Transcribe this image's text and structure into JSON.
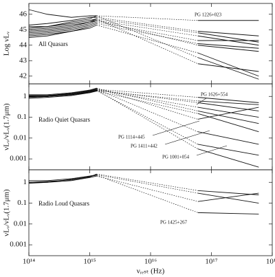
{
  "chart_data": [
    {
      "type": "line",
      "xscale": "log",
      "ylabel": "Log νLᵥ",
      "label": "All Quasars",
      "color": "#111",
      "annotations": [
        "PG 1226+023"
      ],
      "xlim": [
        100000000000000.0,
        1e+18
      ],
      "ylim": [
        41.5,
        46.7
      ],
      "yticks": [
        42,
        43,
        44,
        45,
        46
      ],
      "series": [
        {
          "x": [
            100000000000000.0,
            200000000000000.0,
            500000000000000.0,
            1000000000000000.0,
            1300000000000000.0,
            6e+16,
            6e+17
          ],
          "values": [
            46.3,
            46.0,
            45.8,
            45.9,
            45.9,
            45.6,
            45.6
          ]
        },
        {
          "x": [
            100000000000000.0,
            200000000000000.0,
            500000000000000.0,
            1000000000000000.0,
            1300000000000000.0,
            6e+16,
            6e+17
          ],
          "values": [
            45.3,
            45.4,
            45.6,
            45.8,
            45.8,
            44.9,
            44.6
          ]
        },
        {
          "x": [
            100000000000000.0,
            200000000000000.0,
            500000000000000.0,
            1000000000000000.0,
            1300000000000000.0,
            6e+16,
            6e+17
          ],
          "values": [
            45.1,
            45.2,
            45.4,
            45.6,
            45.7,
            44.8,
            44.2
          ]
        },
        {
          "x": [
            100000000000000.0,
            200000000000000.0,
            500000000000000.0,
            1000000000000000.0,
            1300000000000000.0,
            6e+16,
            6e+17
          ],
          "values": [
            44.9,
            45.0,
            45.2,
            45.5,
            45.6,
            44.6,
            44.0
          ]
        },
        {
          "x": [
            100000000000000.0,
            200000000000000.0,
            500000000000000.0,
            1000000000000000.0,
            1300000000000000.0,
            6e+16,
            6e+17
          ],
          "values": [
            44.7,
            44.8,
            45.0,
            45.3,
            45.5,
            44.3,
            44.3
          ]
        },
        {
          "x": [
            100000000000000.0,
            200000000000000.0,
            500000000000000.0,
            1000000000000000.0,
            1300000000000000.0,
            6e+16,
            6e+17
          ],
          "values": [
            44.6,
            44.7,
            44.9,
            45.2,
            45.4,
            44.1,
            43.8
          ]
        },
        {
          "x": [
            100000000000000.0,
            200000000000000.0,
            500000000000000.0,
            1000000000000000.0,
            1300000000000000.0,
            6e+16,
            6e+17
          ],
          "values": [
            44.5,
            44.6,
            44.9,
            45.1,
            45.3,
            43.5,
            42.0
          ]
        },
        {
          "x": [
            100000000000000.0,
            200000000000000.0,
            500000000000000.0,
            1000000000000000.0,
            1300000000000000.0,
            6e+16,
            6e+17
          ],
          "values": [
            45.0,
            45.1,
            45.3,
            45.5,
            45.7,
            42.8,
            42.3
          ]
        },
        {
          "x": [
            100000000000000.0,
            200000000000000.0,
            500000000000000.0,
            1000000000000000.0,
            1300000000000000.0,
            6e+16,
            6e+17
          ],
          "values": [
            44.8,
            44.9,
            45.1,
            45.4,
            45.6,
            44.0,
            43.6
          ]
        },
        {
          "x": [
            100000000000000.0,
            200000000000000.0,
            500000000000000.0,
            1000000000000000.0,
            1300000000000000.0,
            6e+16,
            6e+17
          ],
          "values": [
            45.2,
            45.2,
            45.5,
            45.7,
            45.9,
            43.2,
            41.8
          ]
        }
      ]
    },
    {
      "type": "line",
      "xscale": "log",
      "yscale": "log",
      "ylabel": "νLᵥ/νLᵥ(1.7μm)",
      "label": "Radio Quiet Quasars",
      "color": "#111",
      "annotations": [
        "PG 1626+554",
        "PG 1114+445",
        "PG 1411+442",
        "PG 1001+054"
      ],
      "xlim": [
        100000000000000.0,
        1e+18
      ],
      "ylim": [
        0.0003,
        4
      ],
      "yticks": [
        0.001,
        0.01,
        0.1,
        1
      ],
      "series": [
        {
          "x": [
            100000000000000.0,
            200000000000000.0,
            500000000000000.0,
            1000000000000000.0,
            1300000000000000.0,
            6e+16,
            6e+17
          ],
          "values": [
            1,
            1.1,
            1.4,
            1.9,
            2.2,
            0.9,
            0.5
          ]
        },
        {
          "x": [
            100000000000000.0,
            200000000000000.0,
            500000000000000.0,
            1000000000000000.0,
            1300000000000000.0,
            6e+16,
            6e+17
          ],
          "values": [
            1.1,
            1.1,
            1.3,
            1.6,
            2.0,
            0.5,
            0.2
          ]
        },
        {
          "x": [
            100000000000000.0,
            200000000000000.0,
            500000000000000.0,
            1000000000000000.0,
            1300000000000000.0,
            6e+16,
            6e+17
          ],
          "values": [
            0.9,
            1.0,
            1.2,
            1.7,
            2.1,
            0.3,
            0.1
          ]
        },
        {
          "x": [
            100000000000000.0,
            200000000000000.0,
            500000000000000.0,
            1000000000000000.0,
            1300000000000000.0,
            6e+16,
            6e+17
          ],
          "values": [
            1.2,
            1.2,
            1.5,
            2.0,
            2.4,
            0.2,
            0.05
          ]
        },
        {
          "x": [
            100000000000000.0,
            200000000000000.0,
            500000000000000.0,
            1000000000000000.0,
            1300000000000000.0,
            6e+16,
            6e+17
          ],
          "values": [
            0.8,
            0.9,
            1.1,
            1.5,
            1.8,
            0.15,
            0.02
          ]
        },
        {
          "x": [
            100000000000000.0,
            200000000000000.0,
            500000000000000.0,
            1000000000000000.0,
            1300000000000000.0,
            6e+16,
            6e+17
          ],
          "values": [
            1.0,
            1.0,
            1.3,
            1.8,
            2.2,
            0.02,
            0.005
          ]
        },
        {
          "x": [
            100000000000000.0,
            200000000000000.0,
            500000000000000.0,
            1000000000000000.0,
            1300000000000000.0,
            6e+16,
            6e+17
          ],
          "values": [
            1.0,
            1.1,
            1.2,
            1.6,
            1.9,
            0.005,
            0.0015
          ]
        },
        {
          "x": [
            100000000000000.0,
            200000000000000.0,
            500000000000000.0,
            1000000000000000.0,
            1300000000000000.0,
            6e+16,
            6e+17
          ],
          "values": [
            0.95,
            1.0,
            1.3,
            1.7,
            2.0,
            0.003,
            0.0004
          ]
        },
        {
          "x": [
            100000000000000.0,
            200000000000000.0,
            500000000000000.0,
            1000000000000000.0,
            1300000000000000.0,
            6e+16,
            6e+17
          ],
          "values": [
            1.1,
            1.0,
            1.2,
            1.5,
            1.9,
            0.6,
            0.4
          ]
        },
        {
          "x": [
            100000000000000.0,
            200000000000000.0,
            500000000000000.0,
            1000000000000000.0,
            1300000000000000.0,
            6e+16,
            6e+17
          ],
          "values": [
            0.9,
            1.0,
            1.4,
            2.0,
            2.5,
            0.08,
            0.3
          ]
        }
      ]
    },
    {
      "type": "line",
      "xscale": "log",
      "yscale": "log",
      "ylabel": "νLᵥ/νLᵥ(1.7μm)",
      "label": "Radio Loud Quasars",
      "color": "#111",
      "annotations": [
        "PG 1425+267"
      ],
      "xlabel": "νᵣₑₛₜ (Hz)",
      "xlim": [
        100000000000000.0,
        1e+18
      ],
      "ylim": [
        0.0003,
        4
      ],
      "yticks": [
        0.001,
        0.01,
        0.1,
        1
      ],
      "xticks": [
        {
          "value": 100000000000000.0,
          "label": "10¹⁴"
        },
        {
          "value": 1000000000000000.0,
          "label": "10¹⁵"
        },
        {
          "value": 1e+16,
          "label": "10¹⁶"
        },
        {
          "value": 1e+17,
          "label": "10¹⁷"
        },
        {
          "value": 1e+18,
          "label": "10¹⁸"
        }
      ],
      "series": [
        {
          "x": [
            100000000000000.0,
            200000000000000.0,
            500000000000000.0,
            1000000000000000.0,
            1300000000000000.0,
            6e+16,
            6e+17
          ],
          "values": [
            1,
            1.1,
            1.3,
            1.8,
            2.5,
            0.4,
            0.25
          ]
        },
        {
          "x": [
            100000000000000.0,
            200000000000000.0,
            500000000000000.0,
            1000000000000000.0,
            1300000000000000.0,
            6e+16,
            6e+17
          ],
          "values": [
            1.2,
            1.2,
            1.5,
            2.0,
            2.3,
            0.3,
            0.1
          ]
        },
        {
          "x": [
            100000000000000.0,
            200000000000000.0,
            500000000000000.0,
            1000000000000000.0,
            1300000000000000.0,
            6e+16,
            6e+17
          ],
          "values": [
            0.9,
            1.0,
            1.2,
            1.7,
            2.0,
            0.12,
            0.3
          ]
        },
        {
          "x": [
            100000000000000.0,
            200000000000000.0,
            500000000000000.0,
            1000000000000000.0,
            1300000000000000.0,
            6e+16,
            6e+17
          ],
          "values": [
            1.0,
            1.0,
            1.4,
            1.9,
            2.2,
            0.035,
            0.03
          ]
        }
      ]
    }
  ]
}
